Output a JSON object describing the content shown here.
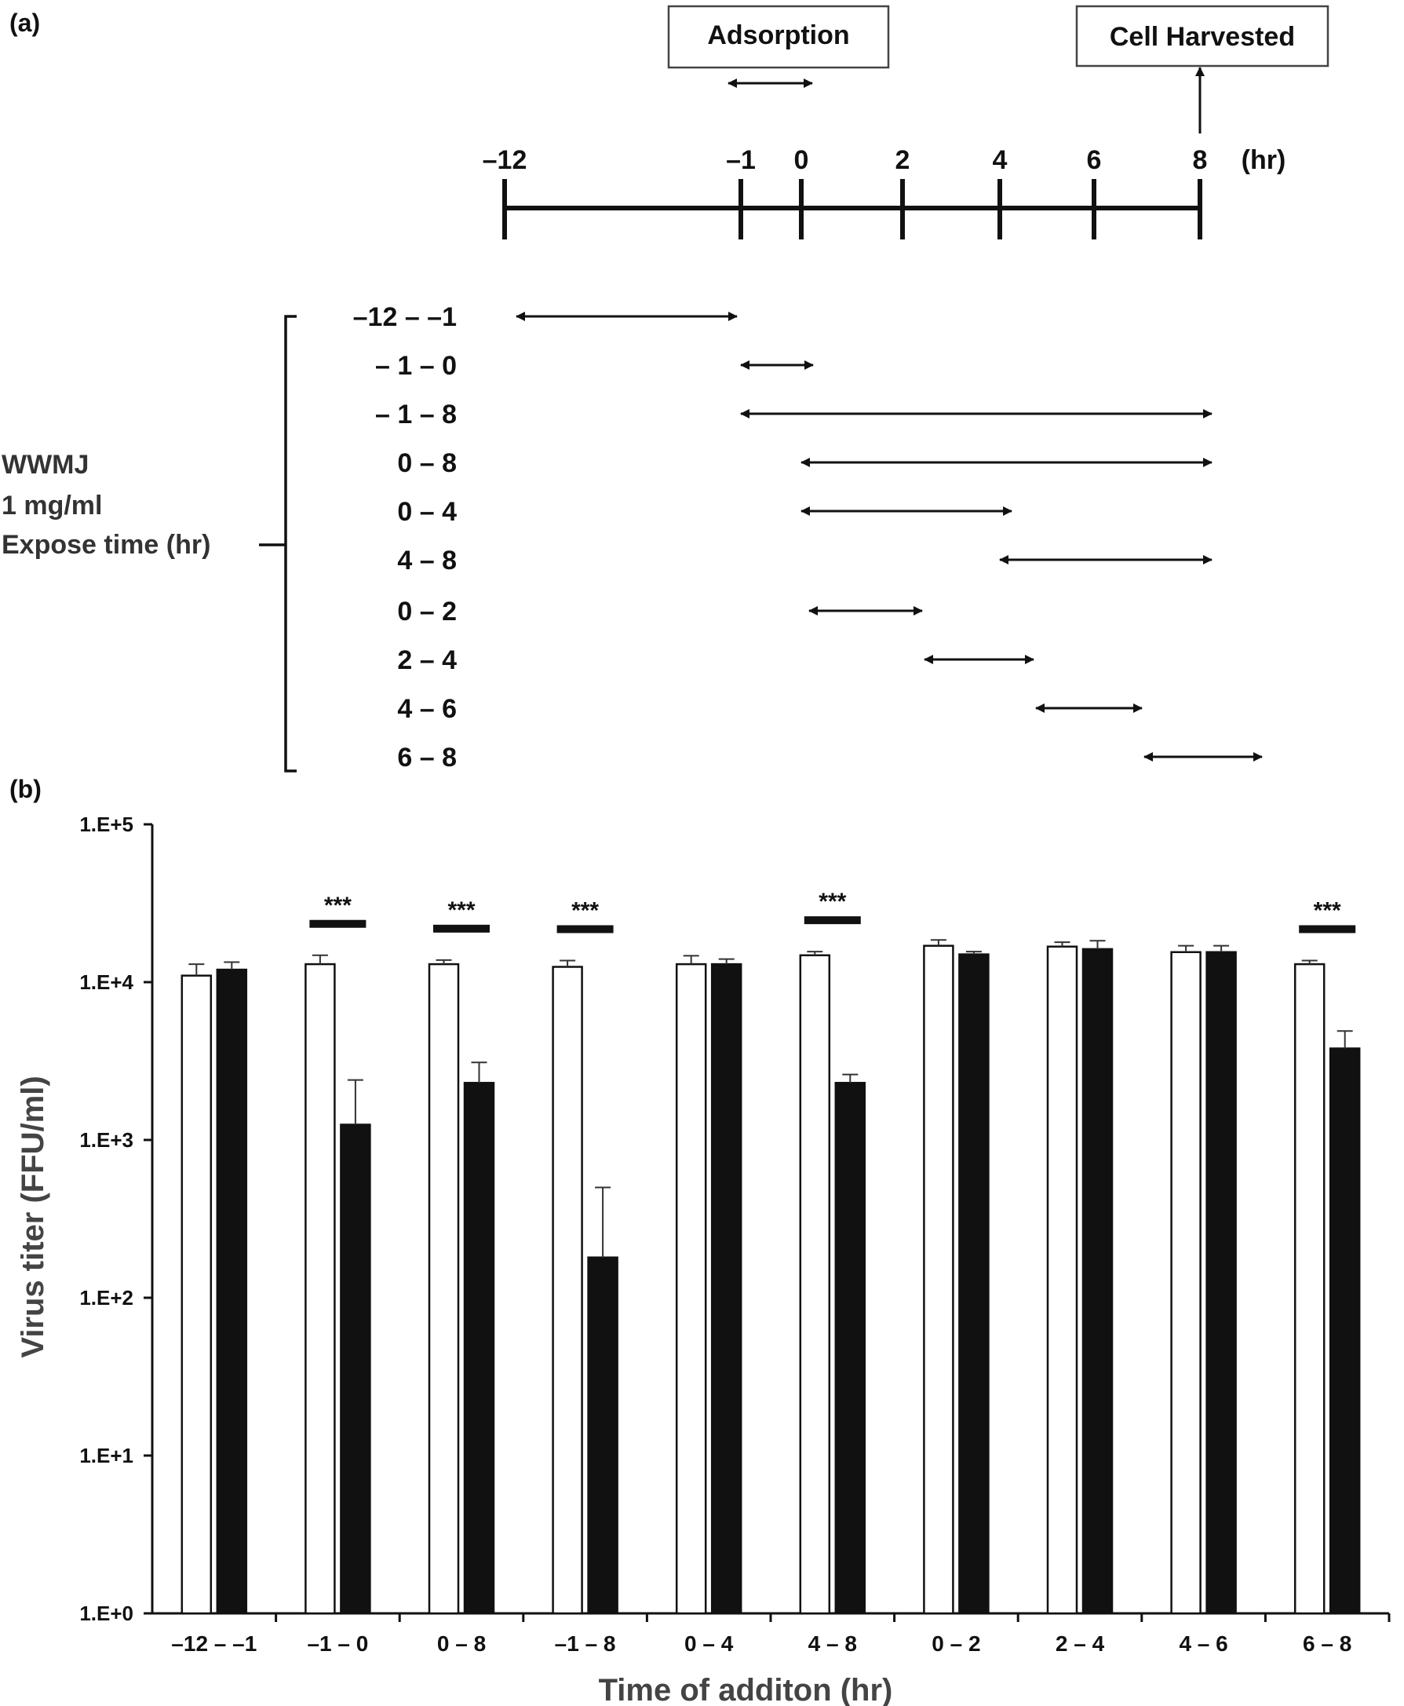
{
  "panel_a": {
    "label": "(a)",
    "adsorption_label": "Adsorption",
    "harvest_label": "Cell Harvested",
    "timeline_ticks": [
      "–12",
      "–1",
      "0",
      "2",
      "4",
      "6",
      "8"
    ],
    "unit": "(hr)",
    "treatment_lines": [
      "WWMJ",
      "1 mg/ml",
      "Expose time (hr)"
    ],
    "exposures": [
      {
        "label": "–12 –  –1",
        "from": -12,
        "to": -1
      },
      {
        "label": "– 1  –   0",
        "from": -1,
        "to": 0
      },
      {
        "label": "– 1  –   8",
        "from": -1,
        "to": 8
      },
      {
        "label": "0  –   8",
        "from": 0,
        "to": 8
      },
      {
        "label": "0  –   4",
        "from": 0,
        "to": 4
      },
      {
        "label": "4  –   8",
        "from": 4,
        "to": 8
      },
      {
        "label": "0  –   2",
        "from": 0,
        "to": 2
      },
      {
        "label": "2  –   4",
        "from": 2,
        "to": 4
      },
      {
        "label": "4  –   6",
        "from": 4,
        "to": 6
      },
      {
        "label": "6  –   8",
        "from": 6,
        "to": 8
      }
    ]
  },
  "chart_data": {
    "panel_label": "(b)",
    "type": "bar",
    "yscale": "log",
    "ylim": [
      1,
      100000
    ],
    "yticks": [
      "1.E+0",
      "1.E+1",
      "1.E+2",
      "1.E+3",
      "1.E+4",
      "1.E+5"
    ],
    "ylabel": "Virus titer  (FFU/ml)",
    "xlabel": "Time of additon  (hr)",
    "categories": [
      "–12 – –1",
      "–1 – 0",
      "0 – 8",
      "–1 – 8",
      "0 – 4",
      "4 – 8",
      "0 – 2",
      "2 – 4",
      "4 – 6",
      "6 – 8"
    ],
    "series": [
      {
        "color": "#ffffff",
        "values": [
          11000,
          13000,
          13000,
          12500,
          13000,
          14800,
          17000,
          16800,
          15500,
          13000
        ],
        "err_upper": [
          13000,
          14800,
          13800,
          13700,
          14700,
          15600,
          18500,
          17900,
          17000,
          13700
        ]
      },
      {
        "color": "#111111",
        "values": [
          12000,
          1250,
          2300,
          180,
          13000,
          2300,
          15000,
          16200,
          15500,
          3800
        ],
        "err_upper": [
          13400,
          2400,
          3100,
          500,
          14000,
          2600,
          15600,
          18300,
          17000,
          4900
        ]
      }
    ],
    "significance": [
      "",
      "***",
      "***",
      "***",
      "",
      "***",
      "",
      "",
      "",
      "***"
    ],
    "grid": false,
    "legend": "none"
  }
}
